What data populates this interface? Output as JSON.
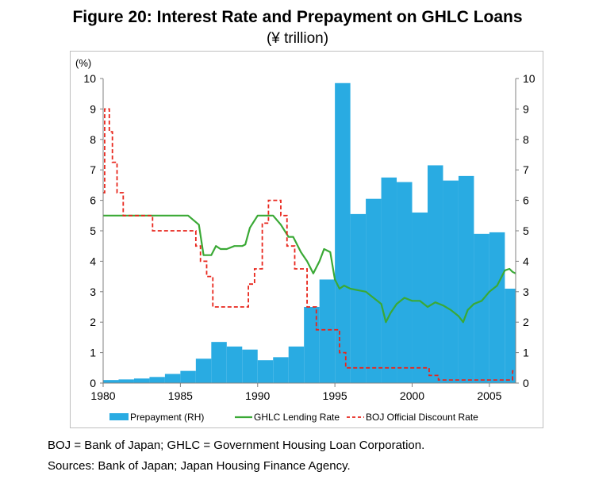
{
  "header": {
    "title": "Figure 20: Interest Rate and Prepayment on GHLC Loans",
    "subtitle": "(¥ trillion)"
  },
  "notes": {
    "line1": "BOJ = Bank of Japan; GHLC = Government Housing Loan Corporation.",
    "line2": "Sources: Bank of Japan; Japan Housing Finance Agency."
  },
  "chart_data": {
    "type": "bar",
    "left_axis_unit": "(%)",
    "ylim": [
      0,
      10
    ],
    "y2lim": [
      0,
      10
    ],
    "xlim": [
      1980,
      2006.7
    ],
    "yticks": [
      "0",
      "1",
      "2",
      "3",
      "4",
      "5",
      "6",
      "7",
      "8",
      "9",
      "10"
    ],
    "xticks": [
      "1980",
      "1985",
      "1990",
      "1995",
      "2000",
      "2005"
    ],
    "grid": false,
    "legend_position": "bottom",
    "colors": {
      "prepayment": "#29abe2",
      "ghlc": "#3aa935",
      "boj": "#e8261c"
    },
    "legend": [
      {
        "label": "Prepayment (RH)",
        "style": "bar"
      },
      {
        "label": "GHLC Lending Rate",
        "style": "solid-line"
      },
      {
        "label": "BOJ Official Discount Rate",
        "style": "dashed-line"
      }
    ],
    "series": [
      {
        "name": "Prepayment (RH)",
        "type": "bar",
        "axis": "right",
        "x": [
          1980,
          1981,
          1982,
          1983,
          1984,
          1985,
          1986,
          1987,
          1988,
          1989,
          1990,
          1991,
          1992,
          1993,
          1994,
          1995,
          1996,
          1997,
          1998,
          1999,
          2000,
          2001,
          2002,
          2003,
          2004,
          2005,
          2006
        ],
        "values": [
          0.1,
          0.12,
          0.15,
          0.2,
          0.3,
          0.4,
          0.8,
          1.35,
          1.2,
          1.1,
          0.75,
          0.85,
          1.2,
          2.5,
          3.4,
          9.85,
          5.55,
          6.05,
          6.75,
          6.6,
          5.6,
          7.15,
          6.65,
          6.8,
          4.9,
          4.95,
          3.1
        ]
      },
      {
        "name": "GHLC Lending Rate",
        "type": "line",
        "axis": "left",
        "x": [
          1980,
          1985.5,
          1986.2,
          1986.5,
          1987.0,
          1987.3,
          1987.6,
          1988.0,
          1988.5,
          1989.0,
          1989.2,
          1989.5,
          1990.0,
          1990.3,
          1991.0,
          1991.5,
          1992.0,
          1992.3,
          1992.8,
          1993.2,
          1993.6,
          1994.0,
          1994.3,
          1994.7,
          1995.0,
          1995.3,
          1995.6,
          1996.0,
          1996.5,
          1997.0,
          1997.5,
          1998.0,
          1998.3,
          1998.6,
          1999.0,
          1999.5,
          2000.0,
          2000.5,
          2001.0,
          2001.5,
          2002.0,
          2002.5,
          2003.0,
          2003.3,
          2003.6,
          2004.0,
          2004.5,
          2005.0,
          2005.5,
          2005.8,
          2006.0,
          2006.3,
          2006.5,
          2006.7
        ],
        "values": [
          5.5,
          5.5,
          5.2,
          4.2,
          4.2,
          4.5,
          4.4,
          4.4,
          4.5,
          4.5,
          4.55,
          5.1,
          5.5,
          5.5,
          5.5,
          5.2,
          4.8,
          4.8,
          4.3,
          4.0,
          3.6,
          4.0,
          4.4,
          4.3,
          3.4,
          3.1,
          3.2,
          3.1,
          3.05,
          3.0,
          2.8,
          2.6,
          2.0,
          2.3,
          2.6,
          2.8,
          2.7,
          2.7,
          2.5,
          2.65,
          2.55,
          2.4,
          2.2,
          2.0,
          2.4,
          2.6,
          2.7,
          3.0,
          3.2,
          3.5,
          3.7,
          3.75,
          3.65,
          3.6
        ]
      },
      {
        "name": "BOJ Official Discount Rate",
        "type": "step",
        "axis": "left",
        "x": [
          1980,
          1980.1,
          1980.4,
          1980.6,
          1980.9,
          1981.3,
          1981.8,
          1983.2,
          1986.0,
          1986.3,
          1986.7,
          1987.1,
          1989.4,
          1989.8,
          1990.3,
          1990.7,
          1991.5,
          1991.9,
          1992.4,
          1993.2,
          1993.8,
          1995.3,
          1995.7,
          2001.1,
          2001.7,
          2006.5
        ],
        "values": [
          6.25,
          9.0,
          8.25,
          7.25,
          6.25,
          5.5,
          5.5,
          5.0,
          4.5,
          4.0,
          3.5,
          2.5,
          3.25,
          3.75,
          5.25,
          6.0,
          5.5,
          4.5,
          3.75,
          2.5,
          1.75,
          1.0,
          0.5,
          0.25,
          0.1,
          0.4
        ]
      }
    ]
  }
}
